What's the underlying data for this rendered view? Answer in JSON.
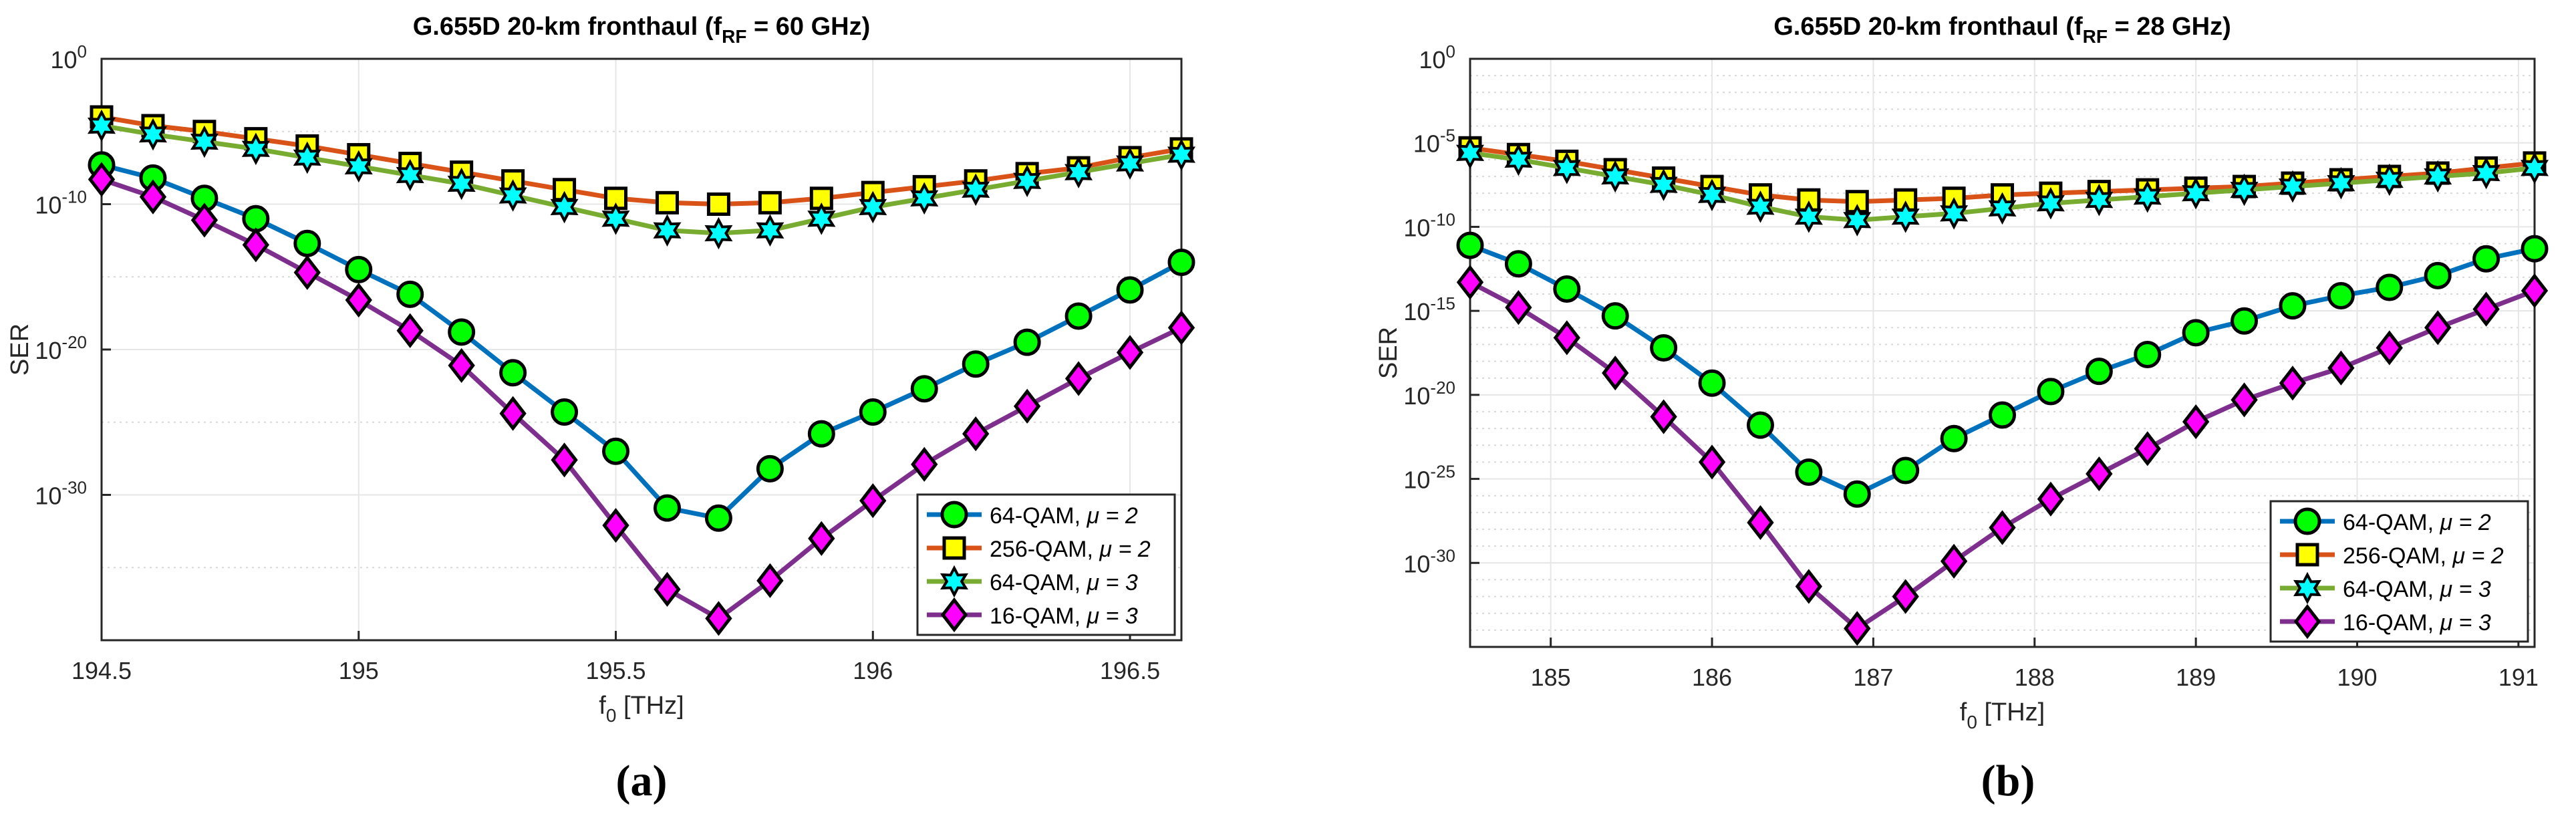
{
  "figure": {
    "panel_labels": [
      "(a)",
      "(b)"
    ]
  },
  "colors": {
    "line_64qam_mu2": "#0072BD",
    "line_256qam_mu2": "#D95319",
    "line_64qam_mu3": "#77AC30",
    "line_16qam_mu3": "#7E2F8E",
    "marker_64qam_mu2": "#00FF00",
    "marker_256qam_mu2": "#FFFF00",
    "marker_64qam_mu3": "#00FFFF",
    "marker_16qam_mu3": "#FF00FF"
  },
  "chart_data": [
    {
      "type": "line",
      "title": "G.655D 20-km fronthaul (f_RF = 60 GHz)",
      "title_parts": {
        "prefix": "G.655D 20-km fronthaul (f",
        "sub": "RF",
        "suffix": " = 60 GHz)"
      },
      "xlabel": "f_0 [THz]",
      "xlabel_parts": {
        "base": "f",
        "sub": "0",
        "suffix": " [THz]"
      },
      "ylabel": "SER",
      "y_scale": "log",
      "xlim": [
        194.5,
        196.6
      ],
      "ylim_log10": [
        -40,
        0
      ],
      "x_ticks": [
        194.5,
        195,
        195.5,
        196,
        196.5
      ],
      "x_tick_labels": [
        "194.5",
        "195",
        "195.5",
        "196",
        "196.5"
      ],
      "y_tick_exponents": [
        0,
        -10,
        -20,
        -30
      ],
      "y_tick_labels": [
        {
          "base": "10",
          "exp": "0"
        },
        {
          "base": "10",
          "exp": "-10"
        },
        {
          "base": "10",
          "exp": "-20"
        },
        {
          "base": "10",
          "exp": "-30"
        }
      ],
      "grid": true,
      "legend_position": "bottom-right",
      "x": [
        194.5,
        194.6,
        194.7,
        194.8,
        194.9,
        195.0,
        195.1,
        195.2,
        195.3,
        195.4,
        195.5,
        195.6,
        195.7,
        195.8,
        195.9,
        196.0,
        196.1,
        196.2,
        196.3,
        196.4,
        196.5,
        196.6
      ],
      "series": [
        {
          "name": "64-QAM, μ = 2",
          "legend_text": "64-QAM, ",
          "mu_text": "μ = 2",
          "marker": "circle",
          "line_color_key": "line_64qam_mu2",
          "marker_color_key": "marker_64qam_mu2",
          "values_log10": [
            -7.3,
            -8.2,
            -9.6,
            -11.0,
            -12.7,
            -14.5,
            -16.2,
            -18.8,
            -21.6,
            -24.3,
            -27.0,
            -30.9,
            -31.6,
            -28.2,
            -25.8,
            -24.3,
            -22.7,
            -21.0,
            -19.5,
            -17.7,
            -15.9,
            -14.0
          ]
        },
        {
          "name": "256-QAM, μ = 2",
          "legend_text": "256-QAM, ",
          "mu_text": "μ = 2",
          "marker": "square",
          "line_color_key": "line_256qam_mu2",
          "marker_color_key": "marker_256qam_mu2",
          "values_log10": [
            -4.0,
            -4.6,
            -5.0,
            -5.5,
            -6.0,
            -6.6,
            -7.2,
            -7.8,
            -8.4,
            -9.0,
            -9.6,
            -9.9,
            -10.0,
            -9.9,
            -9.6,
            -9.2,
            -8.8,
            -8.4,
            -7.9,
            -7.5,
            -6.8,
            -6.2
          ]
        },
        {
          "name": "64-QAM, μ = 3",
          "legend_text": "64-QAM, ",
          "mu_text": "μ = 3",
          "marker": "hexagram",
          "line_color_key": "line_64qam_mu3",
          "marker_color_key": "marker_64qam_mu3",
          "values_log10": [
            -4.6,
            -5.2,
            -5.7,
            -6.2,
            -6.8,
            -7.4,
            -8.0,
            -8.6,
            -9.4,
            -10.2,
            -11.0,
            -11.8,
            -12.0,
            -11.8,
            -11.0,
            -10.2,
            -9.6,
            -9.0,
            -8.4,
            -7.8,
            -7.2,
            -6.6
          ]
        },
        {
          "name": "16-QAM, μ = 3",
          "legend_text": "16-QAM, ",
          "mu_text": "μ = 3",
          "marker": "diamond",
          "line_color_key": "line_16qam_mu3",
          "marker_color_key": "marker_16qam_mu3",
          "values_log10": [
            -8.3,
            -9.5,
            -11.1,
            -12.8,
            -14.7,
            -16.6,
            -18.7,
            -21.1,
            -24.4,
            -27.6,
            -32.1,
            -36.5,
            -38.5,
            -35.9,
            -33.0,
            -30.4,
            -27.9,
            -25.8,
            -23.9,
            -22.0,
            -20.2,
            -18.5
          ]
        }
      ]
    },
    {
      "type": "line",
      "title": "G.655D 20-km fronthaul (f_RF = 28 GHz)",
      "title_parts": {
        "prefix": "G.655D 20-km fronthaul (f",
        "sub": "RF",
        "suffix": " = 28 GHz)"
      },
      "xlabel": "f_0 [THz]",
      "xlabel_parts": {
        "base": "f",
        "sub": "0",
        "suffix": " [THz]"
      },
      "ylabel": "SER",
      "y_scale": "log",
      "xlim": [
        184.5,
        191.1
      ],
      "ylim_log10": [
        -35,
        0
      ],
      "x_ticks": [
        185,
        186,
        187,
        188,
        189,
        190,
        191
      ],
      "x_tick_labels": [
        "185",
        "186",
        "187",
        "188",
        "189",
        "190",
        "191"
      ],
      "y_tick_exponents": [
        0,
        -5,
        -10,
        -15,
        -20,
        -25,
        -30
      ],
      "y_tick_labels": [
        {
          "base": "10",
          "exp": "0"
        },
        {
          "base": "10",
          "exp": "-5"
        },
        {
          "base": "10",
          "exp": "-10"
        },
        {
          "base": "10",
          "exp": "-15"
        },
        {
          "base": "10",
          "exp": "-20"
        },
        {
          "base": "10",
          "exp": "-25"
        },
        {
          "base": "10",
          "exp": "-30"
        }
      ],
      "grid": true,
      "legend_position": "bottom-right",
      "x": [
        184.5,
        184.8,
        185.1,
        185.4,
        185.7,
        186.0,
        186.3,
        186.6,
        186.9,
        187.2,
        187.5,
        187.8,
        188.1,
        188.4,
        188.7,
        189.0,
        189.3,
        189.6,
        189.9,
        190.2,
        190.5,
        190.8,
        191.1
      ],
      "series": [
        {
          "name": "64-QAM, μ = 2",
          "legend_text": "64-QAM, ",
          "mu_text": "μ = 2",
          "marker": "circle",
          "line_color_key": "line_64qam_mu2",
          "marker_color_key": "marker_64qam_mu2",
          "values_log10": [
            -11.1,
            -12.2,
            -13.7,
            -15.3,
            -17.2,
            -19.3,
            -21.8,
            -24.6,
            -25.9,
            -24.5,
            -22.6,
            -21.2,
            -19.8,
            -18.6,
            -17.6,
            -16.3,
            -15.6,
            -14.7,
            -14.1,
            -13.6,
            -12.9,
            -11.9,
            -11.3
          ]
        },
        {
          "name": "256-QAM, μ = 2",
          "legend_text": "256-QAM, ",
          "mu_text": "μ = 2",
          "marker": "square",
          "line_color_key": "line_256qam_mu2",
          "marker_color_key": "marker_256qam_mu2",
          "values_log10": [
            -5.3,
            -5.7,
            -6.1,
            -6.6,
            -7.1,
            -7.6,
            -8.1,
            -8.4,
            -8.5,
            -8.4,
            -8.3,
            -8.1,
            -8.0,
            -7.9,
            -7.8,
            -7.7,
            -7.6,
            -7.4,
            -7.2,
            -7.0,
            -6.8,
            -6.5,
            -6.2
          ]
        },
        {
          "name": "64-QAM, μ = 3",
          "legend_text": "64-QAM, ",
          "mu_text": "μ = 3",
          "marker": "hexagram",
          "line_color_key": "line_64qam_mu3",
          "marker_color_key": "marker_64qam_mu3",
          "values_log10": [
            -5.6,
            -6.0,
            -6.5,
            -7.0,
            -7.5,
            -8.1,
            -8.8,
            -9.4,
            -9.6,
            -9.4,
            -9.2,
            -8.9,
            -8.6,
            -8.4,
            -8.2,
            -8.0,
            -7.8,
            -7.6,
            -7.4,
            -7.2,
            -7.0,
            -6.8,
            -6.5
          ]
        },
        {
          "name": "16-QAM, μ = 3",
          "legend_text": "16-QAM, ",
          "mu_text": "μ = 3",
          "marker": "diamond",
          "line_color_key": "line_16qam_mu3",
          "marker_color_key": "marker_16qam_mu3",
          "values_log10": [
            -13.3,
            -14.8,
            -16.6,
            -18.7,
            -21.3,
            -24.0,
            -27.6,
            -31.4,
            -33.9,
            -32.0,
            -29.9,
            -27.9,
            -26.2,
            -24.7,
            -23.2,
            -21.6,
            -20.3,
            -19.3,
            -18.4,
            -17.2,
            -16.0,
            -14.9,
            -13.8
          ]
        }
      ]
    }
  ]
}
